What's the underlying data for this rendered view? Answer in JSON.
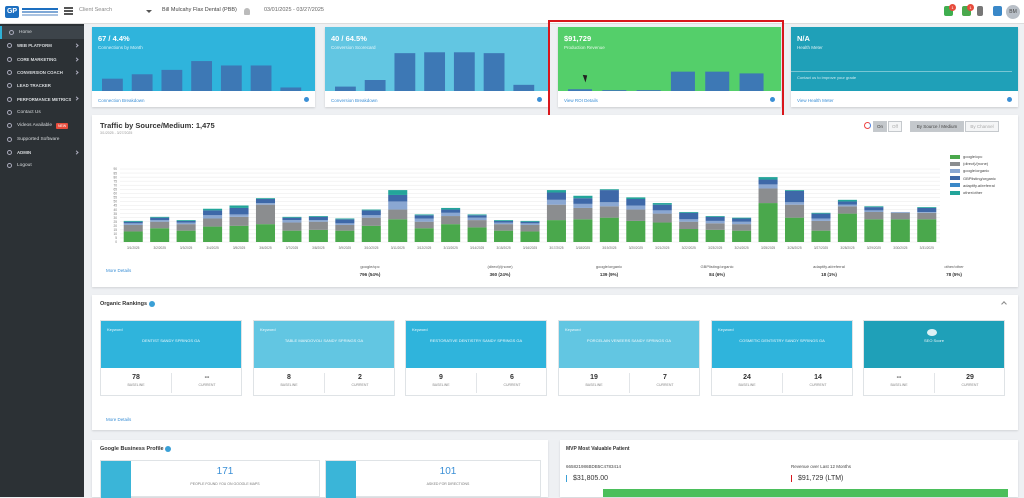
{
  "topbar": {
    "logo_text": "GP",
    "client_search_placeholder": "Client Search",
    "client_name": "Bill Mulcahy Flax Dental (PBB)",
    "date_range": "03/01/2025 - 03/27/2025",
    "avatar_initials": "BM",
    "badge_counts": [
      "1",
      "1"
    ]
  },
  "sidebar": {
    "items": [
      {
        "label": "Home",
        "style": "normal",
        "active": true
      },
      {
        "label": "WEB PLATFORM",
        "style": "bold",
        "arrow": true
      },
      {
        "label": "CORE MARKETING",
        "style": "bold",
        "arrow": true
      },
      {
        "label": "CONVERSION COACH",
        "style": "bold",
        "arrow": true
      },
      {
        "label": "LEAD TRACKER",
        "style": "bold"
      },
      {
        "label": "PERFORMANCE METRICS",
        "style": "bold",
        "arrow": true
      },
      {
        "label": "Contact Us",
        "style": "normal"
      },
      {
        "label": "Videos Available",
        "style": "normal",
        "badge": "NEW"
      },
      {
        "label": "Supported Software",
        "style": "normal"
      },
      {
        "label": "ADMIN",
        "style": "bold",
        "arrow": true
      },
      {
        "label": "Logout",
        "style": "normal"
      }
    ]
  },
  "cards": [
    {
      "value": "67 / 4.4%",
      "subtitle": "Connections by Month",
      "link": "Connection Breakdown",
      "color": "#2fb4dc",
      "bar_color": "#3d78b5",
      "bars": [
        0.28,
        0.38,
        0.48,
        0.68,
        0.58,
        0.58,
        0.08
      ]
    },
    {
      "value": "40 / 64.5%",
      "subtitle": "Conversion Scorecard",
      "link": "Conversion Breakdown",
      "color": "#62c6e2",
      "bar_color": "#3d78b5",
      "bars": [
        0.1,
        0.25,
        0.86,
        0.88,
        0.88,
        0.86,
        0.14
      ]
    },
    {
      "value": "$91,729",
      "subtitle": "Production Revenue",
      "link": "View ROI Details",
      "color": "#54cf6a",
      "bar_color": "#3d78b5",
      "bars": [
        0.04,
        0.02,
        0.02,
        0.44,
        0.44,
        0.4
      ]
    },
    {
      "value": "N/A",
      "subtitle": "Health Meter",
      "link": "View Health Meter",
      "color": "#1fa0b8",
      "bar_color": "#3d78b5",
      "note": "Contact us to improve your grade",
      "bars": []
    }
  ],
  "traffic": {
    "title": "Traffic by Source/Medium: 1,475",
    "date": "3/1/2025 - 3/27/2025",
    "toggle_on": "On",
    "toggle_off": "Off",
    "view_options": [
      "By Source / Medium",
      "By Channel"
    ],
    "more_link": "More Details",
    "stats": [
      {
        "label": "google/cpc",
        "value": "796 (54%)"
      },
      {
        "label": "(direct)/(none)",
        "value": "360 (24%)"
      },
      {
        "label": "google/organic",
        "value": "139 (9%)"
      },
      {
        "label": "GBPlisting/organic",
        "value": "84 (6%)"
      },
      {
        "label": "adaptify.ai/referral",
        "value": "18 (1%)"
      },
      {
        "label": "other/other",
        "value": "78 (5%)"
      }
    ]
  },
  "chart_data": {
    "type": "bar",
    "stacked": true,
    "categories": [
      "3/1/2025",
      "3/2/2025",
      "3/3/2025",
      "3/4/2025",
      "3/5/2025",
      "3/6/2025",
      "3/7/2025",
      "3/8/2025",
      "3/9/2025",
      "3/10/2025",
      "3/11/2025",
      "3/12/2025",
      "3/13/2025",
      "3/14/2025",
      "3/15/2025",
      "3/16/2025",
      "3/17/2025",
      "3/18/2025",
      "3/19/2025",
      "3/20/2025",
      "3/21/2025",
      "3/22/2025",
      "3/23/2025",
      "3/24/2025",
      "3/25/2025",
      "3/26/2025",
      "3/27/2025",
      "3/28/2025",
      "3/29/2025",
      "3/30/2025",
      "3/31/2025"
    ],
    "ylim": [
      0,
      90
    ],
    "yticks": [
      0,
      5,
      10,
      15,
      20,
      25,
      30,
      35,
      40,
      45,
      50,
      55,
      60,
      65,
      70,
      75,
      80,
      85,
      90
    ],
    "series": [
      {
        "name": "google/cpc",
        "color": "#4aa84c",
        "values": [
          13,
          17,
          14,
          19,
          20,
          22,
          14,
          15,
          14,
          20,
          28,
          17,
          22,
          18,
          14,
          13,
          27,
          28,
          30,
          26,
          24,
          16,
          15,
          14,
          48,
          30,
          14,
          35,
          28,
          28,
          28
        ]
      },
      {
        "name": "(direct)/(none)",
        "color": "#8b8d8f",
        "values": [
          8,
          8,
          8,
          10,
          11,
          24,
          10,
          10,
          7,
          10,
          12,
          8,
          10,
          9,
          8,
          8,
          19,
          14,
          14,
          14,
          11,
          9,
          8,
          8,
          18,
          16,
          12,
          9,
          9,
          8,
          8
        ]
      },
      {
        "name": "google/organic",
        "color": "#8aa7d2",
        "values": [
          2,
          2,
          2,
          4,
          3,
          2,
          3,
          2,
          2,
          3,
          10,
          4,
          4,
          3,
          2,
          2,
          6,
          5,
          5,
          5,
          4,
          3,
          3,
          3,
          5,
          3,
          3,
          2,
          2,
          1,
          1
        ]
      },
      {
        "name": "GBPlisting/organic",
        "color": "#3e68a8",
        "values": [
          2,
          3,
          2,
          6,
          8,
          5,
          3,
          4,
          5,
          6,
          8,
          4,
          4,
          3,
          2,
          2,
          9,
          7,
          15,
          8,
          7,
          8,
          5,
          4,
          6,
          14,
          6,
          4,
          4,
          0,
          5
        ]
      },
      {
        "name": "adaptify.ai/referral",
        "color": "#3a88c8",
        "values": [
          0,
          0,
          0,
          0,
          0,
          0,
          0,
          0,
          0,
          0,
          0,
          0,
          0,
          0,
          0,
          0,
          0,
          0,
          0,
          0,
          0,
          0,
          0,
          0,
          0,
          0,
          0,
          0,
          0,
          0,
          0
        ]
      },
      {
        "name": "other/other",
        "color": "#23a59a",
        "values": [
          1,
          1,
          1,
          2,
          3,
          1,
          1,
          1,
          1,
          1,
          6,
          1,
          2,
          1,
          1,
          1,
          3,
          3,
          1,
          2,
          2,
          1,
          1,
          1,
          3,
          1,
          1,
          2,
          1,
          0,
          1
        ]
      }
    ]
  },
  "organic": {
    "title": "Organic Rankings",
    "more_link": "More Details",
    "keywords": [
      {
        "label": "Keyword",
        "name": "DENTIST SANDY SPRINGS GA",
        "baseline": "78",
        "current": "--",
        "color": "#2fb4dc"
      },
      {
        "label": "Keyword",
        "name": "TABLE MANDOVOLI SANDY SPRINGS GA",
        "baseline": "8",
        "current": "2",
        "color": "#62c6e2"
      },
      {
        "label": "Keyword",
        "name": "RESTORATIVE DENTISTRY SANDY SPRINGS GA",
        "baseline": "9",
        "current": "6",
        "color": "#2fb4dc"
      },
      {
        "label": "Keyword",
        "name": "PORCELAIN VENEERS SANDY SPRINGS GA",
        "baseline": "19",
        "current": "7",
        "color": "#62c6e2"
      },
      {
        "label": "Keyword",
        "name": "COSMETIC DENTISTRY SANDY SPRINGS GA",
        "baseline": "24",
        "current": "14",
        "color": "#2fb4dc"
      },
      {
        "label": "",
        "name": "SEO Score",
        "baseline": "--",
        "current": "29",
        "color": "#1fa0b8"
      }
    ],
    "baseline_label": "BASELINE",
    "current_label": "CURRENT"
  },
  "gbp": {
    "title": "Google Business Profile",
    "items": [
      {
        "value": "171",
        "label": "PEOPLE FOUND YOU ON GOOGLE MAPS"
      },
      {
        "value": "101",
        "label": "ASKED FOR DIRECTIONS"
      }
    ]
  },
  "mvp": {
    "title": "MVP Most Valuable Patient",
    "patient_id": "665821986BDB5C4783414",
    "value": "$31,805.00",
    "revenue_label": "Revenue over Last 12 Months",
    "revenue_value": "$91,729 (LTM)"
  }
}
